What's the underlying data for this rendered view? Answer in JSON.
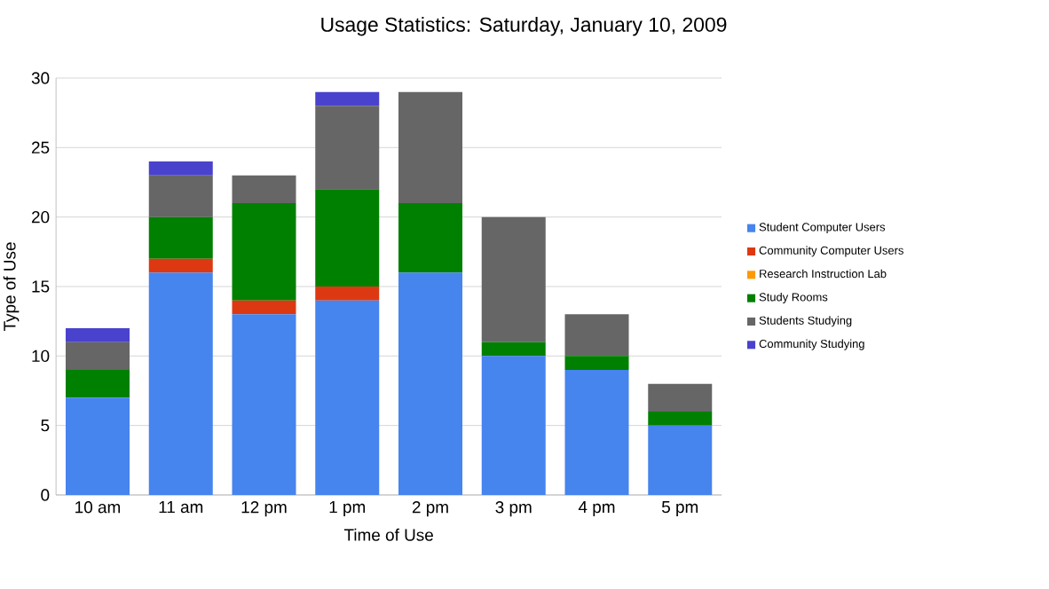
{
  "chart_data": {
    "type": "bar",
    "stacked": true,
    "title": "Usage Statistics: Saturday, January 10, 2009",
    "xlabel": "Time of Use",
    "ylabel": "Type of Use",
    "categories": [
      "10 am",
      "11 am",
      "12 pm",
      "1 pm",
      "2 pm",
      "3 pm",
      "4 pm",
      "5 pm"
    ],
    "series": [
      {
        "name": "Student Computer Users",
        "color": "#4684ee",
        "values": [
          7,
          16,
          13,
          14,
          16,
          10,
          9,
          5
        ]
      },
      {
        "name": "Community Computer Users",
        "color": "#dc3912",
        "values": [
          0,
          1,
          1,
          1,
          0,
          0,
          0,
          0
        ]
      },
      {
        "name": "Research Instruction Lab",
        "color": "#ff9900",
        "values": [
          0,
          0,
          0,
          0,
          0,
          0,
          0,
          0
        ]
      },
      {
        "name": "Study Rooms",
        "color": "#008000",
        "values": [
          2,
          3,
          7,
          7,
          5,
          1,
          1,
          1
        ]
      },
      {
        "name": "Students Studying",
        "color": "#666666",
        "values": [
          2,
          3,
          2,
          6,
          8,
          9,
          3,
          2
        ]
      },
      {
        "name": "Community Studying",
        "color": "#4942cc",
        "values": [
          1,
          1,
          0,
          1,
          0,
          0,
          0,
          0
        ]
      }
    ],
    "ylim": [
      0,
      30
    ],
    "yticks": [
      0,
      5,
      10,
      15,
      20,
      25,
      30
    ],
    "grid": "y",
    "legend": "right"
  }
}
